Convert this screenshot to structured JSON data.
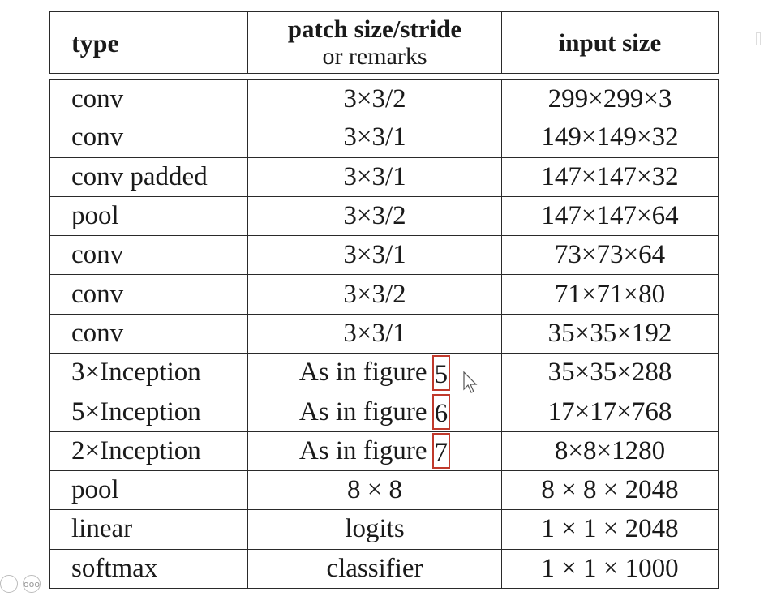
{
  "table": {
    "headers": {
      "type": "type",
      "patch_line1": "patch size/stride",
      "patch_line2": "or remarks",
      "input": "input size"
    },
    "rows": [
      {
        "type": "conv",
        "patch": "3×3/2",
        "input": "299×299×3"
      },
      {
        "type": "conv",
        "patch": "3×3/1",
        "input": "149×149×32"
      },
      {
        "type": "conv padded",
        "patch": "3×3/1",
        "input": "147×147×32"
      },
      {
        "type": "pool",
        "patch": "3×3/2",
        "input": "147×147×64"
      },
      {
        "type": "conv",
        "patch": "3×3/1",
        "input": "73×73×64"
      },
      {
        "type": "conv",
        "patch": "3×3/2",
        "input": "71×71×80"
      },
      {
        "type": "conv",
        "patch": "3×3/1",
        "input": "35×35×192"
      },
      {
        "type": "3×Inception",
        "patch": "As in figure",
        "fig": "5",
        "input": "35×35×288"
      },
      {
        "type": "5×Inception",
        "patch": "As in figure",
        "fig": "6",
        "input": "17×17×768"
      },
      {
        "type": "2×Inception",
        "patch": "As in figure",
        "fig": "7",
        "input": "8×8×1280"
      },
      {
        "type": "pool",
        "patch": "8 × 8",
        "input": "8 × 8 × 2048"
      },
      {
        "type": "linear",
        "patch": "logits",
        "input": "1 × 1 × 2048"
      },
      {
        "type": "softmax",
        "patch": "classifier",
        "input": "1 × 1 × 1000"
      }
    ]
  },
  "colors": {
    "figure_link_border": "#c0392b"
  },
  "corner_icons": [
    "more-icon"
  ],
  "corner_text": "ooo"
}
